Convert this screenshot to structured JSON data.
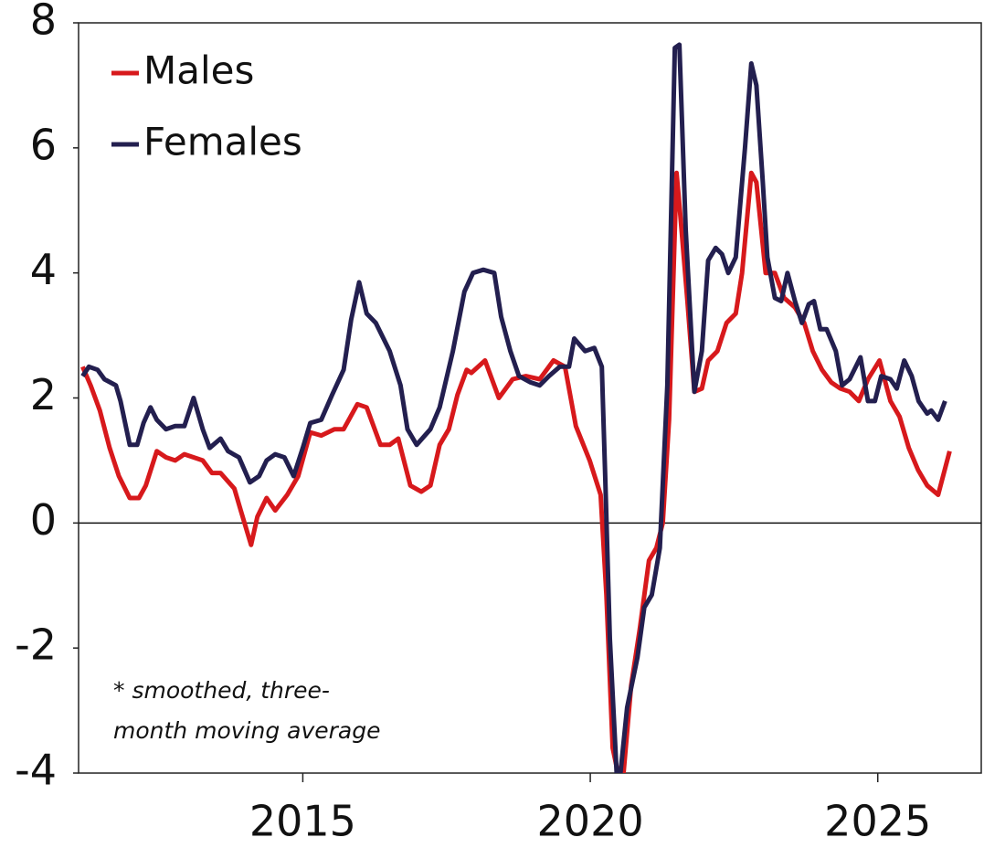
{
  "chart_data": {
    "type": "line",
    "annotation": [
      "* smoothed, three-",
      "month moving average"
    ],
    "xlim": [
      2011.1,
      2026.8
    ],
    "xticks": [
      2015,
      2020,
      2025
    ],
    "ylim": [
      -4,
      8
    ],
    "yticks": [
      8,
      6,
      4,
      2,
      0,
      -2,
      -4
    ],
    "zero_line": true,
    "legend": "top-left",
    "series": [
      {
        "name": "Males",
        "color": "#d7191c",
        "x": [
          2011.17,
          2011.31,
          2011.47,
          2011.64,
          2011.8,
          2011.99,
          2012.15,
          2012.27,
          2012.46,
          2012.62,
          2012.78,
          2012.94,
          2013.1,
          2013.26,
          2013.42,
          2013.57,
          2013.81,
          2013.92,
          2014.1,
          2014.21,
          2014.37,
          2014.52,
          2014.73,
          2014.92,
          2015.13,
          2015.32,
          2015.55,
          2015.71,
          2015.95,
          2016.11,
          2016.35,
          2016.51,
          2016.66,
          2016.87,
          2017.06,
          2017.22,
          2017.38,
          2017.54,
          2017.69,
          2017.85,
          2017.93,
          2018.17,
          2018.41,
          2018.65,
          2018.88,
          2019.12,
          2019.36,
          2019.56,
          2019.75,
          2019.99,
          2020.18,
          2020.28,
          2020.39,
          2020.55,
          2020.71,
          2020.86,
          2021.02,
          2021.15,
          2021.26,
          2021.37,
          2021.5,
          2021.56,
          2021.69,
          2021.81,
          2021.94,
          2022.05,
          2022.21,
          2022.37,
          2022.53,
          2022.64,
          2022.8,
          2022.89,
          2023.05,
          2023.21,
          2023.37,
          2023.56,
          2023.72,
          2023.87,
          2024.03,
          2024.19,
          2024.35,
          2024.51,
          2024.67,
          2024.83,
          2025.03,
          2025.22,
          2025.38,
          2025.54,
          2025.7,
          2025.86,
          2026.05,
          2026.25
        ],
        "values": [
          2.5,
          2.2,
          1.8,
          1.2,
          0.75,
          0.4,
          0.4,
          0.6,
          1.15,
          1.05,
          1.0,
          1.1,
          1.05,
          1.0,
          0.8,
          0.8,
          0.55,
          0.2,
          -0.35,
          0.1,
          0.4,
          0.2,
          0.45,
          0.75,
          1.45,
          1.4,
          1.5,
          1.5,
          1.9,
          1.85,
          1.25,
          1.25,
          1.35,
          0.6,
          0.5,
          0.6,
          1.25,
          1.5,
          2.05,
          2.45,
          2.4,
          2.6,
          2.0,
          2.3,
          2.35,
          2.3,
          2.6,
          2.5,
          1.55,
          1.0,
          0.45,
          -1.15,
          -3.6,
          -4.3,
          -2.6,
          -1.7,
          -0.6,
          -0.4,
          0.0,
          1.65,
          5.6,
          5.0,
          3.55,
          2.1,
          2.15,
          2.6,
          2.75,
          3.2,
          3.35,
          4.0,
          5.6,
          5.45,
          4.0,
          4.0,
          3.6,
          3.45,
          3.2,
          2.75,
          2.45,
          2.25,
          2.15,
          2.1,
          1.95,
          2.3,
          2.6,
          1.95,
          1.7,
          1.2,
          0.85,
          0.6,
          0.45,
          1.15
        ]
      },
      {
        "name": "Females",
        "color": "#231f4f",
        "x": [
          2011.17,
          2011.28,
          2011.43,
          2011.55,
          2011.75,
          2011.83,
          2011.99,
          2012.12,
          2012.23,
          2012.35,
          2012.46,
          2012.62,
          2012.78,
          2012.94,
          2013.1,
          2013.26,
          2013.38,
          2013.57,
          2013.7,
          2013.89,
          2014.08,
          2014.24,
          2014.37,
          2014.52,
          2014.68,
          2014.84,
          2015.0,
          2015.13,
          2015.32,
          2015.51,
          2015.71,
          2015.84,
          2015.98,
          2016.11,
          2016.27,
          2016.51,
          2016.7,
          2016.82,
          2016.98,
          2017.22,
          2017.38,
          2017.61,
          2017.81,
          2017.96,
          2018.14,
          2018.33,
          2018.45,
          2018.61,
          2018.76,
          2018.96,
          2019.12,
          2019.28,
          2019.47,
          2019.63,
          2019.72,
          2019.91,
          2020.07,
          2020.2,
          2020.26,
          2020.34,
          2020.48,
          2020.64,
          2020.82,
          2020.94,
          2021.07,
          2021.21,
          2021.34,
          2021.47,
          2021.55,
          2021.66,
          2021.81,
          2021.94,
          2022.05,
          2022.18,
          2022.29,
          2022.4,
          2022.53,
          2022.69,
          2022.8,
          2022.89,
          2023.0,
          2023.08,
          2023.21,
          2023.32,
          2023.43,
          2023.56,
          2023.68,
          2023.8,
          2023.89,
          2024.0,
          2024.11,
          2024.27,
          2024.38,
          2024.51,
          2024.7,
          2024.83,
          2024.95,
          2025.06,
          2025.22,
          2025.33,
          2025.46,
          2025.59,
          2025.71,
          2025.86,
          2025.93,
          2026.05,
          2026.17
        ],
        "values": [
          2.35,
          2.5,
          2.45,
          2.3,
          2.2,
          1.95,
          1.25,
          1.25,
          1.6,
          1.85,
          1.65,
          1.5,
          1.55,
          1.55,
          2.0,
          1.5,
          1.2,
          1.35,
          1.15,
          1.05,
          0.65,
          0.75,
          1.0,
          1.1,
          1.05,
          0.75,
          1.2,
          1.6,
          1.65,
          2.05,
          2.45,
          3.25,
          3.85,
          3.35,
          3.2,
          2.75,
          2.2,
          1.5,
          1.25,
          1.5,
          1.85,
          2.75,
          3.7,
          4.0,
          4.05,
          4.0,
          3.3,
          2.75,
          2.35,
          2.25,
          2.2,
          2.35,
          2.5,
          2.5,
          2.95,
          2.75,
          2.8,
          2.5,
          0.75,
          -1.85,
          -4.4,
          -2.95,
          -2.15,
          -1.35,
          -1.15,
          -0.4,
          2.2,
          7.6,
          7.65,
          4.7,
          2.1,
          2.75,
          4.2,
          4.4,
          4.3,
          4.0,
          4.25,
          6.0,
          7.35,
          7.0,
          5.45,
          4.25,
          3.6,
          3.55,
          4.0,
          3.55,
          3.2,
          3.5,
          3.55,
          3.1,
          3.1,
          2.75,
          2.2,
          2.3,
          2.65,
          1.95,
          1.95,
          2.35,
          2.3,
          2.15,
          2.6,
          2.35,
          1.95,
          1.75,
          1.8,
          1.65,
          1.95
        ]
      }
    ]
  }
}
